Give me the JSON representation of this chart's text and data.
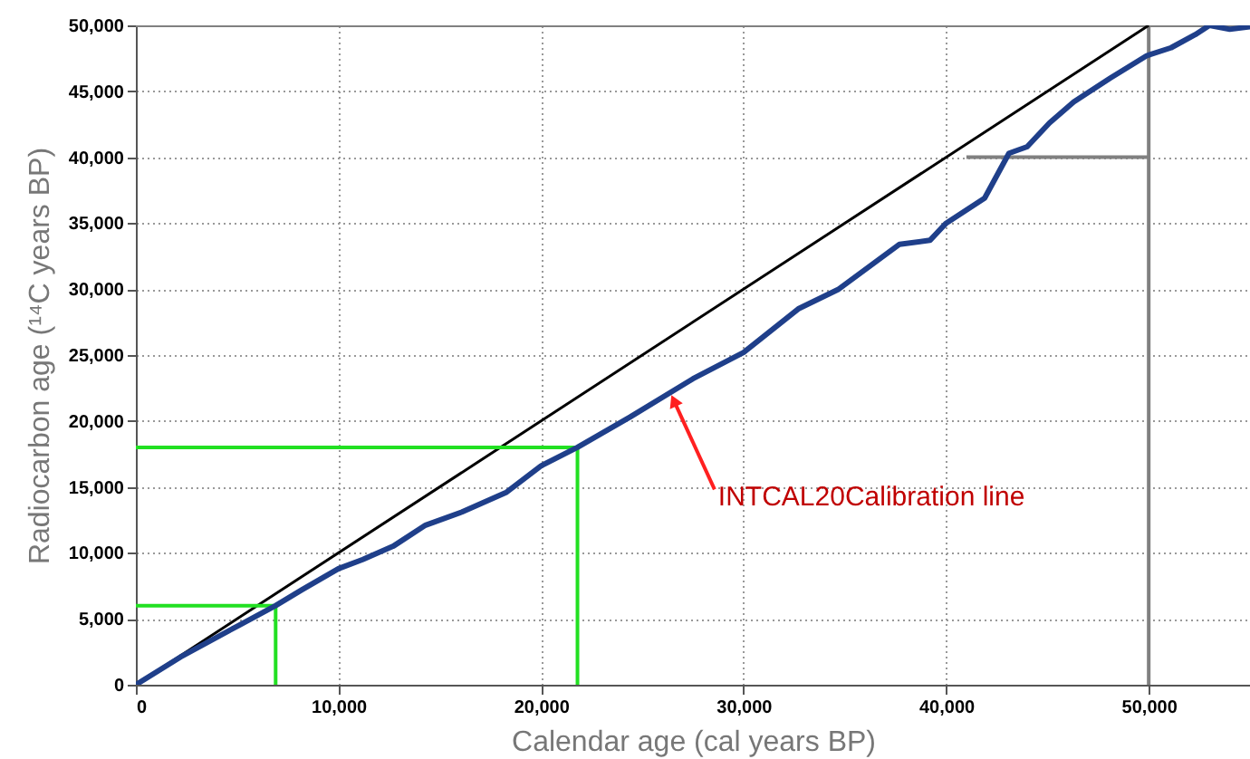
{
  "chart_data": {
    "type": "line",
    "xlabel": "Calendar age (cal years BP)",
    "ylabel": "Radiocarbon age (¹⁴C years BP)",
    "xlim": [
      0,
      55000
    ],
    "xticks": [
      0,
      {
        "value": 10000,
        "label": "10,000"
      },
      {
        "value": 20000,
        "label": "20,000"
      },
      {
        "value": 30000,
        "label": "30,000"
      },
      {
        "value": 40000,
        "label": "40,000"
      },
      {
        "value": 50000,
        "label": "50,000"
      }
    ],
    "ylim": [
      0,
      50000
    ],
    "yticks": [
      0,
      {
        "value": 5000,
        "label": "5,000"
      },
      {
        "value": 10000,
        "label": "10,000"
      },
      {
        "value": 15000,
        "label": "15,000"
      },
      {
        "value": 20000,
        "label": "20,000"
      },
      {
        "value": 25000,
        "label": "25,000"
      },
      {
        "value": 30000,
        "label": "30,000"
      },
      {
        "value": 35000,
        "label": "35,000"
      },
      {
        "value": 40000,
        "label": "40,000"
      },
      {
        "value": 45000,
        "label": "45,000"
      },
      {
        "value": 50000,
        "label": "50,000"
      }
    ],
    "grid": true,
    "marker": "none",
    "line_style": "solid",
    "series": [
      {
        "color": "#808080",
        "x": [
          0,
          55000
        ],
        "values": [
          50000,
          50000
        ]
      },
      {
        "color": "#808080",
        "x": [
          50000,
          50000
        ],
        "values": [
          0,
          50000
        ]
      },
      {
        "color": "#808080",
        "x": [
          41000,
          50000
        ],
        "values": [
          40000,
          40000
        ]
      },
      {
        "color": "#000000",
        "x": [
          0,
          50000
        ],
        "values": [
          0,
          50000
        ]
      },
      {
        "color": "#22e022",
        "x": [
          0,
          21800,
          21800
        ],
        "values": [
          18000,
          18000,
          0
        ]
      },
      {
        "color": "#22e022",
        "x": [
          0,
          6900,
          6900
        ],
        "values": [
          6000,
          6000,
          0
        ]
      },
      {
        "color": "#1f3f8a",
        "x": [
          0,
          2200,
          5200,
          6900,
          8200,
          10000,
          11200,
          12700,
          14300,
          16100,
          18300,
          20000,
          21800,
          24400,
          27500,
          30000,
          32700,
          34700,
          37700,
          39200,
          40000,
          41900,
          43100,
          44000,
          45100,
          46300,
          48100,
          49900,
          51100,
          52300,
          53000,
          54000,
          55000
        ],
        "values": [
          0,
          2100,
          4600,
          6000,
          7200,
          8800,
          9500,
          10500,
          12100,
          13100,
          14600,
          16600,
          18000,
          20300,
          23200,
          25200,
          28500,
          30000,
          33400,
          33700,
          35000,
          36900,
          40300,
          40800,
          42600,
          44200,
          46000,
          47700,
          48300,
          49300,
          50000,
          49700,
          49900
        ]
      }
    ],
    "annotations": [
      {
        "text": "INTCAL20Calibration line",
        "x": 26600,
        "y": 21400
      }
    ]
  }
}
